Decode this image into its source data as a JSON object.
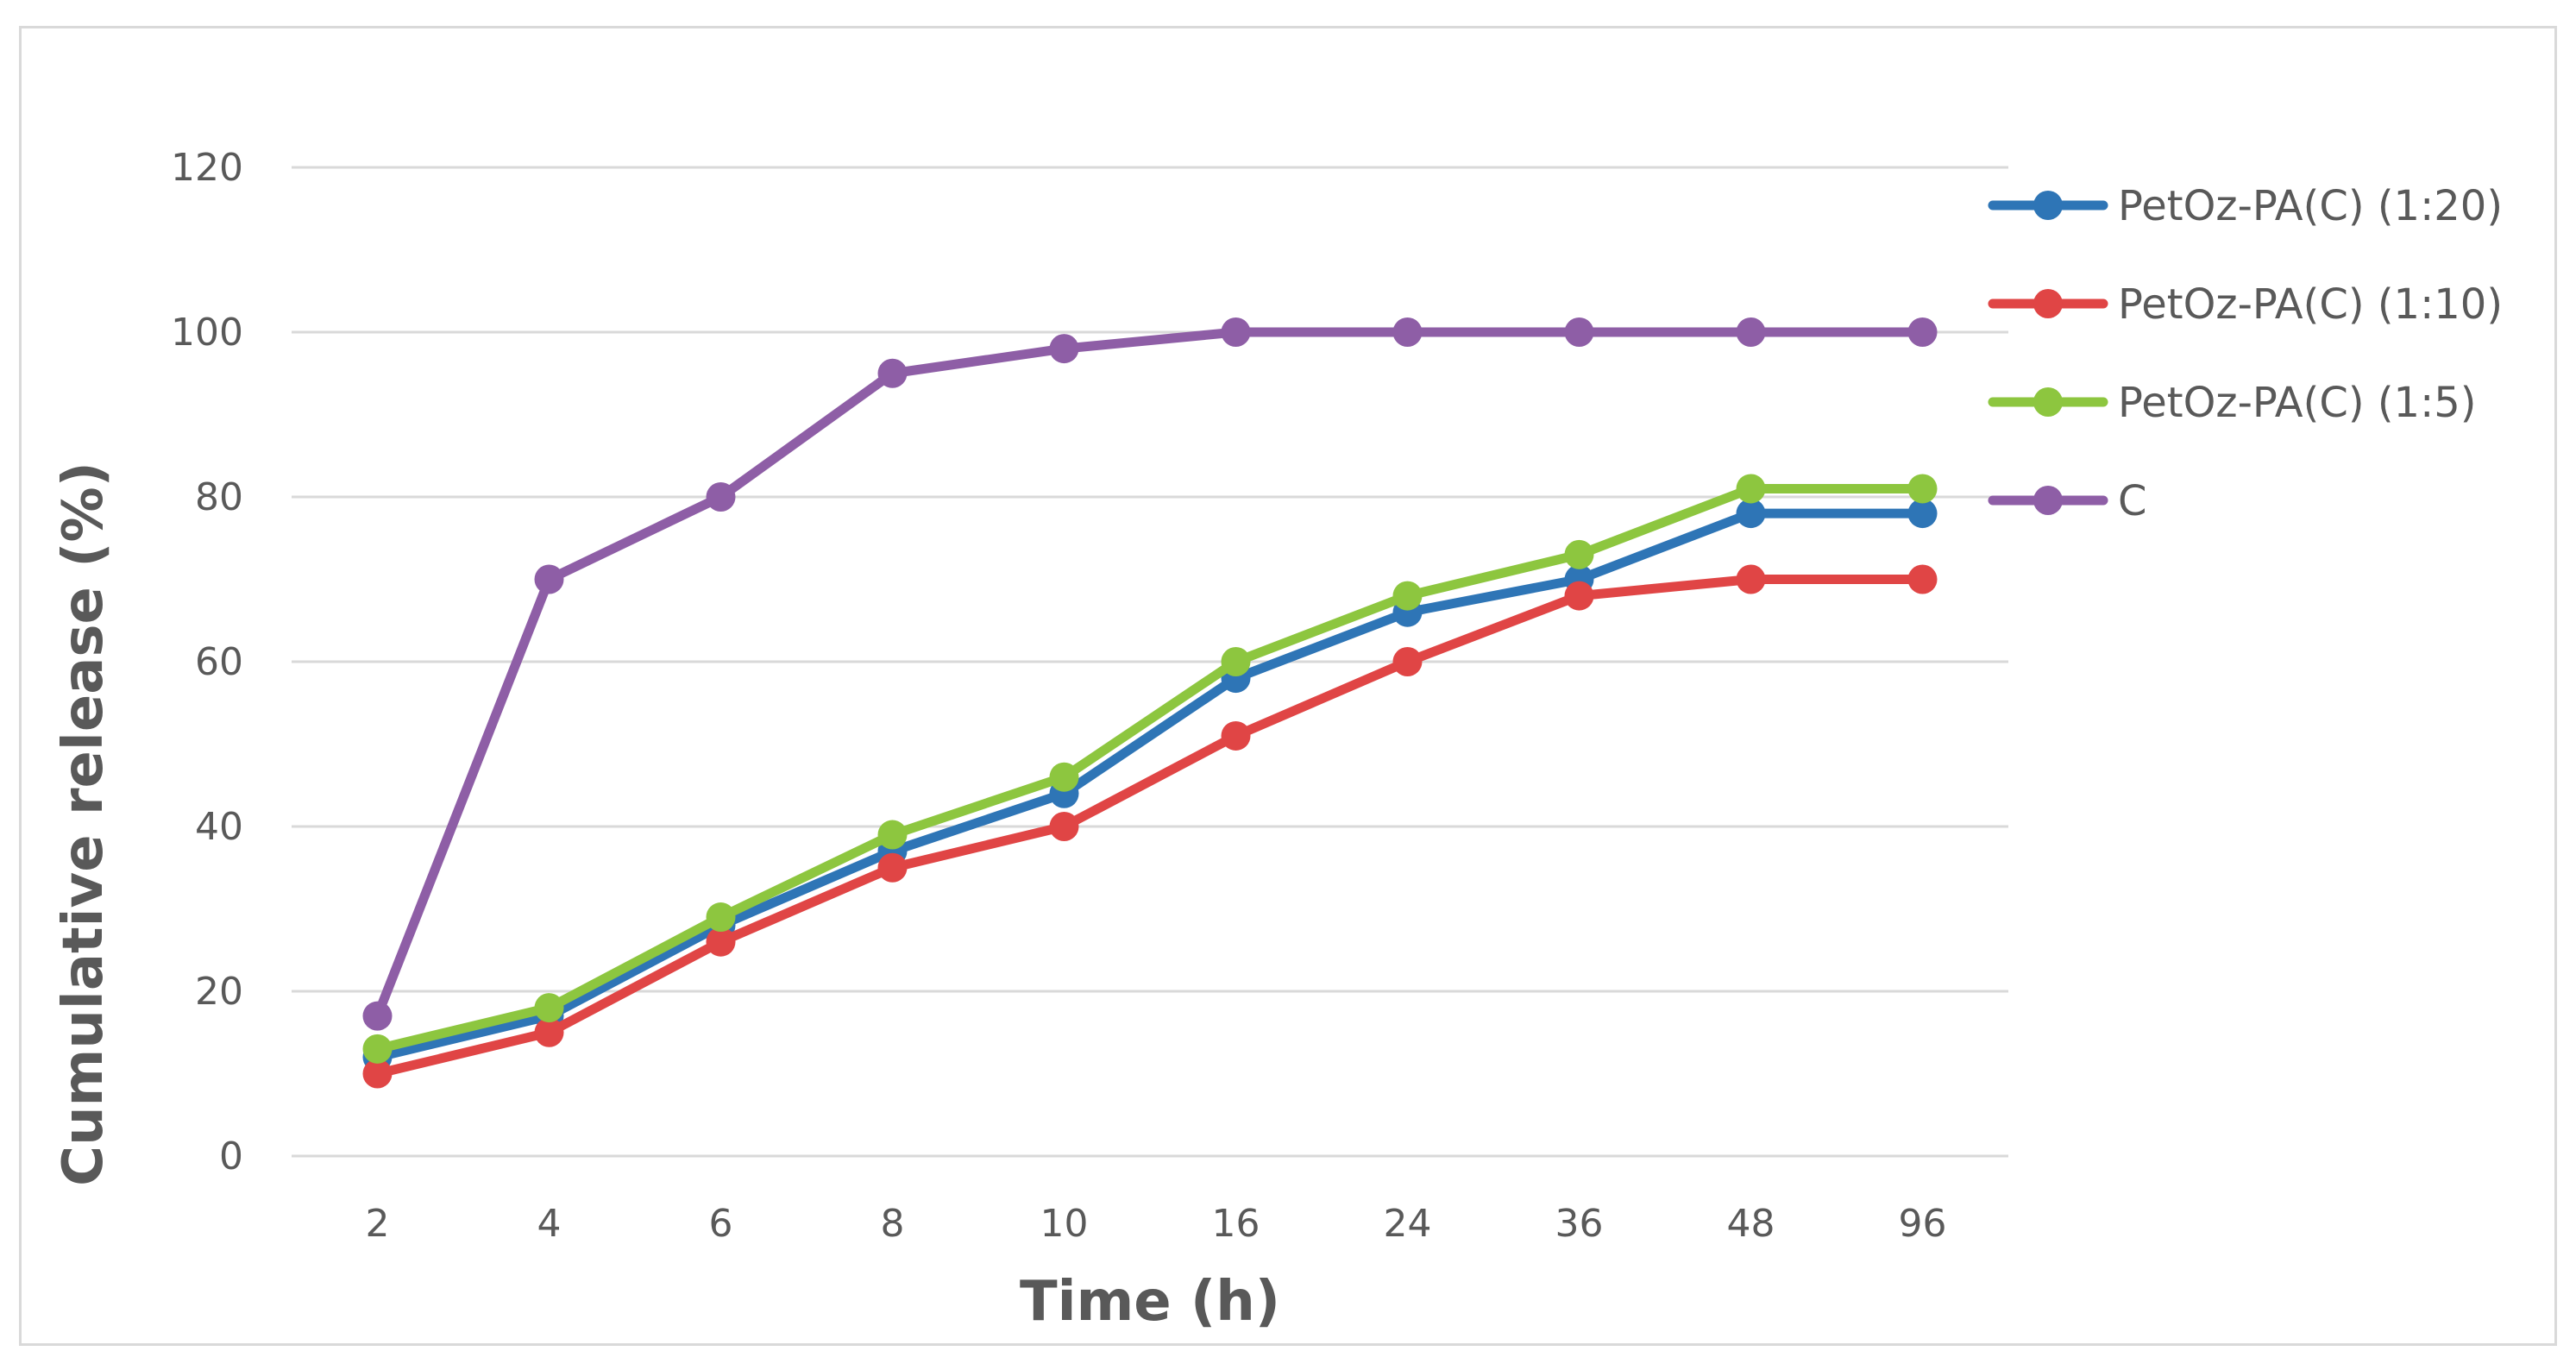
{
  "chart_data": {
    "type": "line",
    "title": "",
    "xlabel": "Time (h)",
    "ylabel": "Cumulative release (%)",
    "categories": [
      "2",
      "4",
      "6",
      "8",
      "10",
      "16",
      "24",
      "36",
      "48",
      "96"
    ],
    "ylim": [
      0,
      120
    ],
    "yticks": [
      "0",
      "20",
      "40",
      "60",
      "80",
      "100",
      "120"
    ],
    "grid": true,
    "legend_position": "right",
    "series": [
      {
        "name": "PetOz-PA(C) (1:20)",
        "color": "#2e75b6",
        "values": [
          12,
          17,
          28,
          37,
          44,
          58,
          66,
          70,
          78,
          78
        ]
      },
      {
        "name": "PetOz-PA(C) (1:10)",
        "color": "#e04545",
        "values": [
          10,
          15,
          26,
          35,
          40,
          51,
          60,
          68,
          70,
          70
        ]
      },
      {
        "name": "PetOz-PA(C) (1:5)",
        "color": "#8dc63f",
        "values": [
          13,
          18,
          29,
          39,
          46,
          60,
          68,
          73,
          81,
          81
        ]
      },
      {
        "name": "C",
        "color": "#8e5ea6",
        "values": [
          17,
          70,
          80,
          95,
          98,
          100,
          100,
          100,
          100,
          100
        ]
      }
    ]
  }
}
